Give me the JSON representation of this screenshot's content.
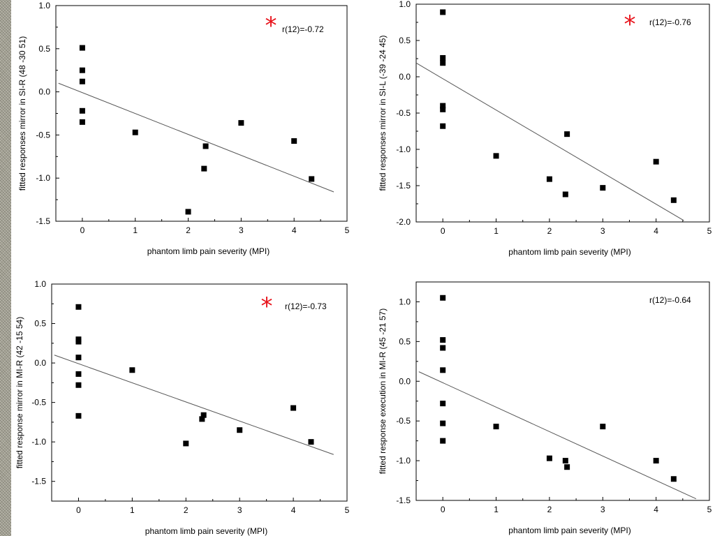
{
  "chart_data": [
    {
      "type": "scatter",
      "xlabel": "phantom limb pain severity (MPI)",
      "ylabel": "fitted responses mirror in SI-R (48 -30 51)",
      "xlim": [
        -0.5,
        5
      ],
      "ylim": [
        -1.5,
        1.0
      ],
      "xticks": [
        0,
        1,
        2,
        3,
        4,
        5
      ],
      "yticks": [
        -1.5,
        -1.0,
        -0.5,
        0.0,
        0.5,
        1.0
      ],
      "annotation": "r(12)=-0.72",
      "significance_marker": "*",
      "points": [
        [
          0,
          0.51
        ],
        [
          0,
          0.25
        ],
        [
          0,
          0.12
        ],
        [
          0,
          -0.22
        ],
        [
          0,
          -0.35
        ],
        [
          1,
          -0.47
        ],
        [
          2.0,
          -1.39
        ],
        [
          2.3,
          -0.89
        ],
        [
          2.33,
          -0.63
        ],
        [
          3,
          -0.36
        ],
        [
          4,
          -0.57
        ],
        [
          4.33,
          -1.01
        ]
      ],
      "fit_line": [
        [
          -0.45,
          0.1
        ],
        [
          4.75,
          -1.16
        ]
      ]
    },
    {
      "type": "scatter",
      "xlabel": "phantom limb pain severity (MPI)",
      "ylabel": "fitted responses mirror in SI-L (-39 -24 45)",
      "xlim": [
        -0.5,
        5
      ],
      "ylim": [
        -2.0,
        1.0
      ],
      "xticks": [
        0,
        1,
        2,
        3,
        4,
        5
      ],
      "yticks": [
        -2.0,
        -1.5,
        -1.0,
        -0.5,
        0.0,
        0.5,
        1.0
      ],
      "annotation": "r(12)=-0.76",
      "significance_marker": "*",
      "points": [
        [
          0,
          0.89
        ],
        [
          0,
          0.26
        ],
        [
          0,
          0.19
        ],
        [
          0,
          -0.4
        ],
        [
          0,
          -0.45
        ],
        [
          0,
          -0.68
        ],
        [
          1,
          -1.09
        ],
        [
          2.0,
          -1.41
        ],
        [
          2.3,
          -1.62
        ],
        [
          2.33,
          -0.79
        ],
        [
          3,
          -1.53
        ],
        [
          4,
          -1.17
        ],
        [
          4.33,
          -1.7
        ]
      ],
      "fit_line": [
        [
          -0.5,
          0.19
        ],
        [
          4.52,
          -1.98
        ]
      ]
    },
    {
      "type": "scatter",
      "xlabel": "phantom limb pain severity (MPI)",
      "ylabel": "fitted response mirror in MI-R (42 -15 54)",
      "xlim": [
        -0.5,
        5
      ],
      "ylim": [
        -1.75,
        1.0
      ],
      "xticks": [
        0,
        1,
        2,
        3,
        4,
        5
      ],
      "yticks": [
        -1.5,
        -1.0,
        -0.5,
        0.0,
        0.5,
        1.0
      ],
      "annotation": "r(12)=-0.73",
      "significance_marker": "*",
      "points": [
        [
          0,
          0.71
        ],
        [
          0,
          0.3
        ],
        [
          0,
          0.27
        ],
        [
          0,
          0.07
        ],
        [
          0,
          -0.14
        ],
        [
          0,
          -0.28
        ],
        [
          0,
          -0.67
        ],
        [
          1,
          -0.09
        ],
        [
          2.0,
          -1.02
        ],
        [
          2.3,
          -0.71
        ],
        [
          2.33,
          -0.66
        ],
        [
          3,
          -0.85
        ],
        [
          4,
          -0.57
        ],
        [
          4.33,
          -1.0
        ]
      ],
      "fit_line": [
        [
          -0.45,
          0.1
        ],
        [
          4.75,
          -1.16
        ]
      ]
    },
    {
      "type": "scatter",
      "xlabel": "phantom limb pain severity (MPI)",
      "ylabel": "fitted response execution in MI-R (45 -21 57)",
      "xlim": [
        -0.5,
        5
      ],
      "ylim": [
        -1.5,
        1.25
      ],
      "xticks": [
        0,
        1,
        2,
        3,
        4,
        5
      ],
      "yticks": [
        -1.5,
        -1.0,
        -0.5,
        0.0,
        0.5,
        1.0
      ],
      "annotation": "r(12)=-0.64",
      "significance_marker": "",
      "points": [
        [
          0,
          1.05
        ],
        [
          0,
          0.52
        ],
        [
          0,
          0.42
        ],
        [
          0,
          0.14
        ],
        [
          0,
          -0.28
        ],
        [
          0,
          -0.53
        ],
        [
          0,
          -0.75
        ],
        [
          1,
          -0.57
        ],
        [
          2.0,
          -0.97
        ],
        [
          2.3,
          -1.0
        ],
        [
          2.33,
          -1.08
        ],
        [
          3,
          -0.57
        ],
        [
          4,
          -1.0
        ],
        [
          4.33,
          -1.23
        ]
      ],
      "fit_line": [
        [
          -0.45,
          0.12
        ],
        [
          4.75,
          -1.48
        ]
      ]
    }
  ]
}
